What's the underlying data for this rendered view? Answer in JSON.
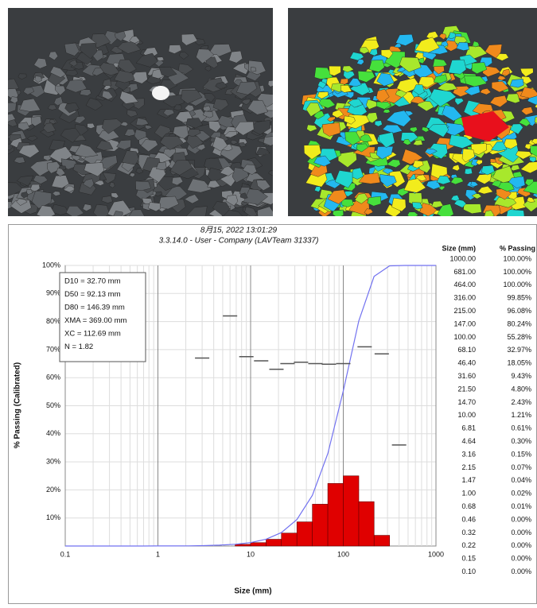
{
  "chart_data": {
    "type": "histogram",
    "title": "8月15, 2022 13:01:29",
    "subtitle": "3.3.14.0  -  User - Company (LAVTeam 31337)",
    "x_label": "Size (mm)",
    "y_label": "% Passing (Calibrated)",
    "x_scale": "log",
    "xlim": [
      0.1,
      1000
    ],
    "xticks": [
      0.1,
      1,
      10,
      100,
      1000
    ],
    "ylim": [
      0,
      100
    ],
    "yticks": [
      {
        "value": 10,
        "label": "10%"
      },
      {
        "value": 20,
        "label": "20%"
      },
      {
        "value": 30,
        "label": "30%"
      },
      {
        "value": 40,
        "label": "40%"
      },
      {
        "value": 50,
        "label": "50%"
      },
      {
        "value": 60,
        "label": "60%"
      },
      {
        "value": 70,
        "label": "70%"
      },
      {
        "value": 80,
        "label": "80%"
      },
      {
        "value": 90,
        "label": "90%"
      },
      {
        "value": 100,
        "label": "100%"
      }
    ],
    "grid": true,
    "color": "#e00000",
    "bins": [
      6.81,
      10,
      14.7,
      21.5,
      31.6,
      46.4,
      68.1,
      100,
      147,
      215,
      316
    ],
    "counts": [
      0.6,
      1.2,
      2.4,
      4.6,
      8.6,
      14.9,
      22.3,
      25.0,
      15.8,
      3.8
    ],
    "cumulative": {
      "color": "#7272f0",
      "x": [
        0.1,
        0.15,
        0.22,
        0.32,
        0.46,
        0.68,
        1.0,
        1.47,
        2.15,
        3.16,
        4.64,
        6.81,
        10,
        14.7,
        21.5,
        31.6,
        46.4,
        68.1,
        100,
        147,
        215,
        316,
        464,
        681,
        1000
      ],
      "values": [
        0,
        0,
        0,
        0,
        0,
        0.01,
        0.02,
        0.04,
        0.07,
        0.15,
        0.3,
        0.61,
        1.21,
        2.43,
        4.8,
        9.43,
        18.05,
        32.97,
        55.28,
        80.24,
        96.08,
        99.85,
        100,
        100,
        100
      ]
    },
    "markers": {
      "color": "#555555",
      "x": [
        3,
        6,
        9,
        13,
        19,
        25,
        35,
        50,
        70,
        100,
        170,
        260,
        400
      ],
      "values": [
        67,
        82,
        67.5,
        66,
        63,
        65,
        65.5,
        65,
        64.8,
        65,
        71,
        68.5,
        36
      ]
    },
    "annotations": [
      "D10 = 32.70 mm",
      "D50 = 92.13 mm",
      "D80 = 146.39 mm",
      "XMA = 369.00 mm",
      "XC = 112.69 mm",
      "N = 1.82"
    ]
  },
  "table": {
    "headers": [
      "Size (mm)",
      "% Passing"
    ],
    "rows": [
      [
        "1000.00",
        "100.00%"
      ],
      [
        "681.00",
        "100.00%"
      ],
      [
        "464.00",
        "100.00%"
      ],
      [
        "316.00",
        "99.85%"
      ],
      [
        "215.00",
        "96.08%"
      ],
      [
        "147.00",
        "80.24%"
      ],
      [
        "100.00",
        "55.28%"
      ],
      [
        "68.10",
        "32.97%"
      ],
      [
        "46.40",
        "18.05%"
      ],
      [
        "31.60",
        "9.43%"
      ],
      [
        "21.50",
        "4.80%"
      ],
      [
        "14.70",
        "2.43%"
      ],
      [
        "10.00",
        "1.21%"
      ],
      [
        "6.81",
        "0.61%"
      ],
      [
        "4.64",
        "0.30%"
      ],
      [
        "3.16",
        "0.15%"
      ],
      [
        "2.15",
        "0.07%"
      ],
      [
        "1.47",
        "0.04%"
      ],
      [
        "1.00",
        "0.02%"
      ],
      [
        "0.68",
        "0.01%"
      ],
      [
        "0.46",
        "0.00%"
      ],
      [
        "0.32",
        "0.00%"
      ],
      [
        "0.22",
        "0.00%"
      ],
      [
        "0.15",
        "0.00%"
      ],
      [
        "0.10",
        "0.00%"
      ]
    ]
  }
}
